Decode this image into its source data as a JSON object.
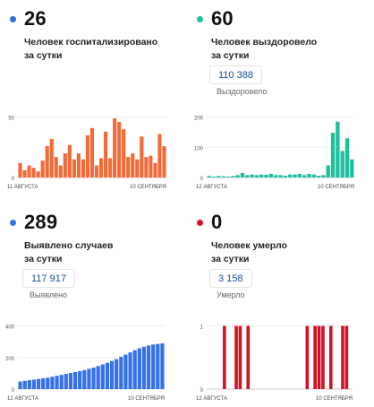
{
  "chart_data": [
    {
      "type": "bar",
      "headline": "26",
      "label_line1": "Человек госпитализировано",
      "label_line2": "за сутки",
      "color": "#f26a37",
      "dot_color": "#2e6cd6",
      "x_start_label": "11 АВГУСТА",
      "x_end_label": "10 СЕНТЯБРЯ",
      "yticks": [
        0,
        50
      ],
      "ylim": [
        0,
        55
      ],
      "values": [
        12,
        6,
        10,
        8,
        5,
        14,
        26,
        32,
        17,
        10,
        20,
        27,
        15,
        20,
        15,
        35,
        41,
        10,
        16,
        38,
        16,
        49,
        46,
        40,
        17,
        20,
        15,
        34,
        17,
        18,
        12,
        36,
        26
      ]
    },
    {
      "type": "bar",
      "headline": "60",
      "label_line1": "Человек выздоровело",
      "label_line2": "за сутки",
      "total": "110 388",
      "total_label": "Выздоровело",
      "color": "#1dbf9f",
      "dot_color": "#1dbf9f",
      "x_start_label": "12 АВГУСТА",
      "x_end_label": "10 СЕНТЯБРЯ",
      "yticks": [
        0,
        100,
        200
      ],
      "ylim": [
        0,
        220
      ],
      "values": [
        5,
        3,
        5,
        4,
        3,
        5,
        8,
        15,
        8,
        10,
        8,
        10,
        9,
        12,
        8,
        8,
        6,
        10,
        10,
        12,
        8,
        12,
        10,
        6,
        8,
        40,
        148,
        185,
        88,
        130,
        60
      ]
    },
    {
      "type": "bar",
      "headline": "289",
      "label_line1": "Выявлено случаев",
      "label_line2": "за сутки",
      "total": "117 917",
      "total_label": "Выявлено",
      "color": "#3571e8",
      "dot_color": "#3571e8",
      "x_start_label": "12 АВГУСТА",
      "x_end_label": "10 СЕНТЯБРЯ",
      "yticks": [
        0,
        200,
        400
      ],
      "ylim": [
        0,
        420
      ],
      "values": [
        48,
        52,
        56,
        60,
        64,
        68,
        72,
        78,
        84,
        90,
        96,
        102,
        108,
        114,
        120,
        128,
        136,
        146,
        156,
        166,
        178,
        190,
        204,
        218,
        232,
        246,
        258,
        268,
        276,
        282,
        286,
        289
      ]
    },
    {
      "type": "bar",
      "headline": "0",
      "label_line1": "Человек умерло",
      "label_line2": "за сутки",
      "total": "3 158",
      "total_label": "Умерло",
      "color": "#cc1424",
      "dot_color": "#cc1424",
      "x_start_label": "12 АВГУСТА",
      "x_end_label": "10 СЕНТЯБРЯ",
      "yticks": [
        0,
        1
      ],
      "ylim": [
        0,
        1.05
      ],
      "values": [
        0,
        0,
        0,
        0,
        1,
        0,
        0,
        1,
        1,
        0,
        1,
        0,
        0,
        0,
        0,
        0,
        0,
        0,
        0,
        0,
        0,
        0,
        0,
        0,
        0,
        1,
        0,
        1,
        1,
        1,
        0,
        1,
        0,
        0,
        1,
        1,
        0
      ]
    }
  ]
}
